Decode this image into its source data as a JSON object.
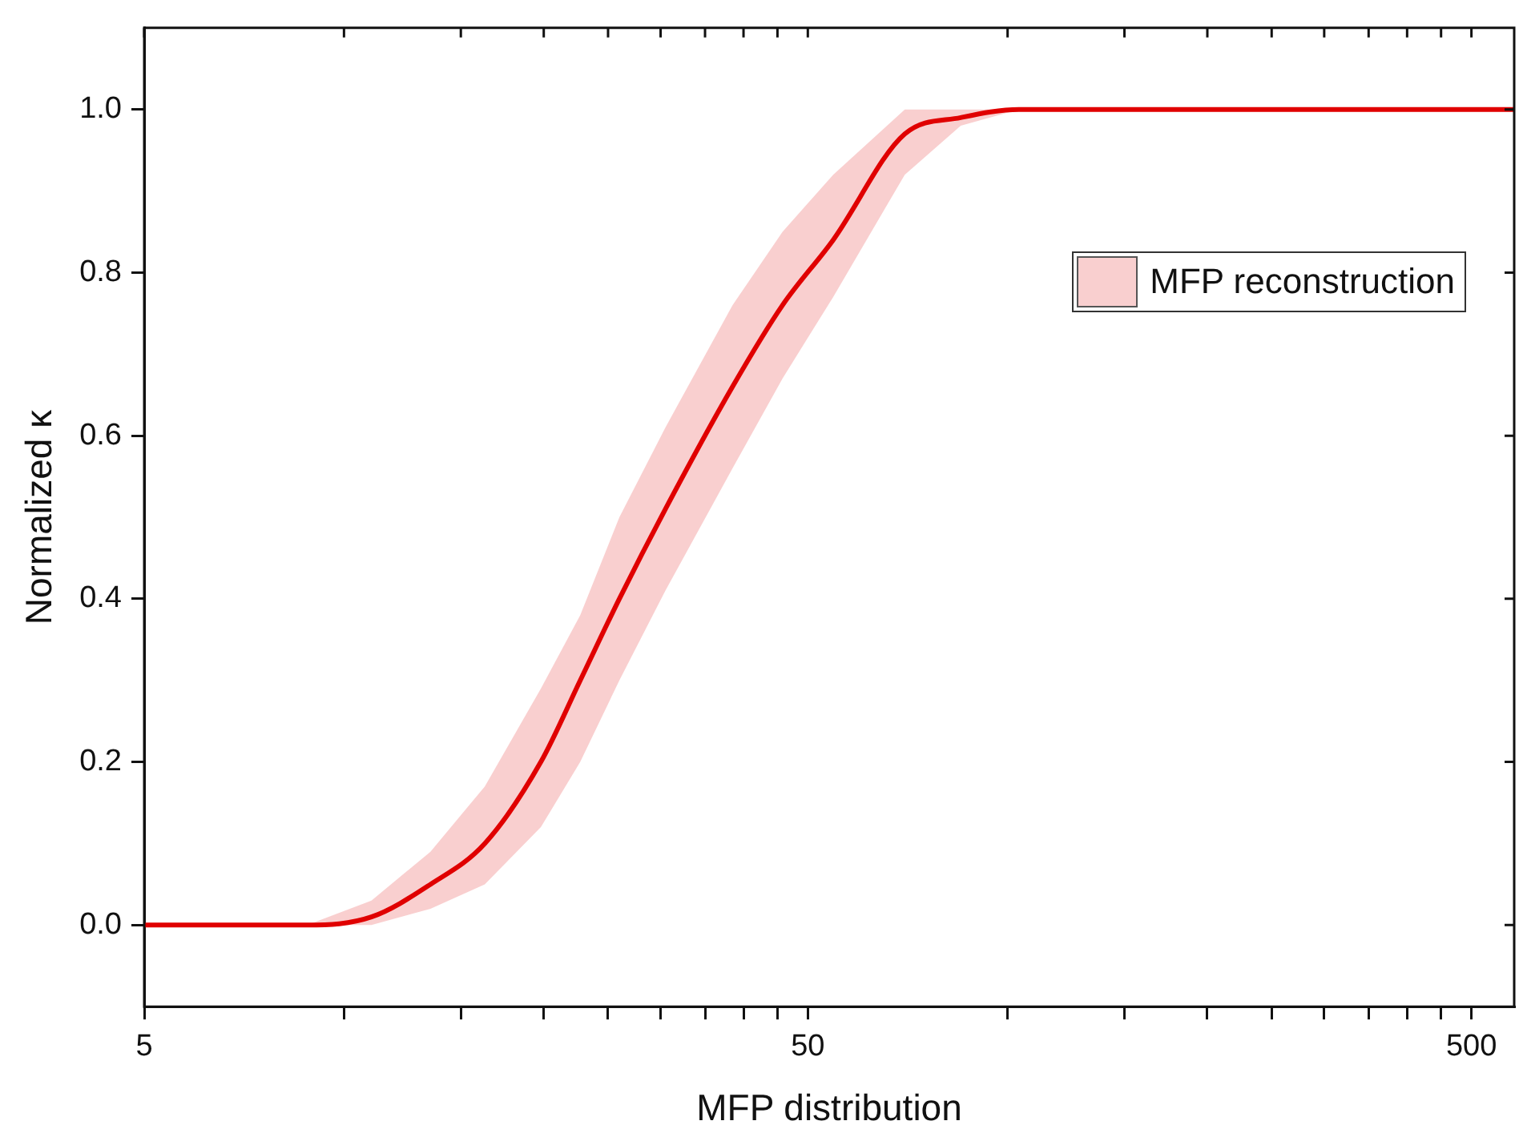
{
  "chart_data": {
    "type": "line",
    "xlabel": "MFP distribution",
    "ylabel": "Normalized κ",
    "log": "x",
    "x": [
      5,
      8.8,
      11,
      13.5,
      16.3,
      19.8,
      22.7,
      26,
      30.5,
      38.5,
      45.8,
      54.6,
      70,
      85,
      104,
      580
    ],
    "series": [
      {
        "name": "MFP reconstruction",
        "color": "#e00000",
        "values": [
          0,
          0,
          0.01,
          0.05,
          0.1,
          0.2,
          0.3,
          0.4,
          0.51,
          0.66,
          0.76,
          0.84,
          0.97,
          0.99,
          1,
          1
        ],
        "lower": [
          0,
          0,
          0,
          0.02,
          0.05,
          0.12,
          0.2,
          0.3,
          0.41,
          0.56,
          0.67,
          0.77,
          0.92,
          0.98,
          1,
          1
        ],
        "upper": [
          0,
          0,
          0.03,
          0.09,
          0.17,
          0.29,
          0.38,
          0.5,
          0.61,
          0.76,
          0.85,
          0.92,
          1,
          1,
          1,
          1
        ]
      }
    ],
    "xlim": [
      5,
      580
    ],
    "xticks": [
      5,
      {
        "value": 10,
        "label": null
      },
      {
        "value": 15,
        "label": null
      },
      {
        "value": 20,
        "label": null
      },
      {
        "value": 25,
        "label": null
      },
      {
        "value": 30,
        "label": null
      },
      {
        "value": 35,
        "label": null
      },
      {
        "value": 40,
        "label": null
      },
      {
        "value": 45,
        "label": null
      },
      50,
      {
        "value": 100,
        "label": null
      },
      {
        "value": 150,
        "label": null
      },
      {
        "value": 200,
        "label": null
      },
      {
        "value": 250,
        "label": null
      },
      {
        "value": 300,
        "label": null
      },
      {
        "value": 350,
        "label": null
      },
      {
        "value": 400,
        "label": null
      },
      {
        "value": 450,
        "label": null
      },
      500
    ],
    "ylim": [
      -0.1,
      1.1
    ],
    "yticks": [
      {
        "value": 0,
        "label": "0.0"
      },
      {
        "value": 0.2,
        "label": "0.2"
      },
      {
        "value": 0.4,
        "label": "0.4"
      },
      {
        "value": 0.6,
        "label": "0.6"
      },
      {
        "value": 0.8,
        "label": "0.8"
      },
      {
        "value": 1,
        "label": "1.0"
      }
    ],
    "grid": false,
    "legend": "top right",
    "marker": "none",
    "line_style": "solid"
  }
}
